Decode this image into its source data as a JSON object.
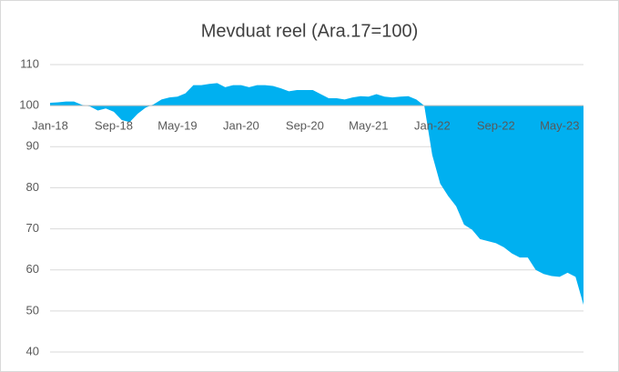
{
  "chart_data": {
    "type": "area",
    "title": "Mevduat reel (Ara.17=100)",
    "categories": [
      "Jan-18",
      null,
      null,
      null,
      null,
      null,
      null,
      null,
      "Sep-18",
      null,
      null,
      null,
      null,
      null,
      null,
      null,
      "May-19",
      null,
      null,
      null,
      null,
      null,
      null,
      null,
      "Jan-20",
      null,
      null,
      null,
      null,
      null,
      null,
      null,
      "Sep-20",
      null,
      null,
      null,
      null,
      null,
      null,
      null,
      "May-21",
      null,
      null,
      null,
      null,
      null,
      null,
      null,
      "Jan-22",
      null,
      null,
      null,
      null,
      null,
      null,
      null,
      "Sep-22",
      null,
      null,
      null,
      null,
      null,
      null,
      null,
      "May-23",
      null,
      null,
      null
    ],
    "values": [
      100.7,
      100.8,
      101,
      101,
      100.2,
      99.8,
      98.8,
      99.3,
      98.5,
      96.5,
      96,
      98,
      99.5,
      100.3,
      101.5,
      102,
      102.2,
      103,
      105,
      105,
      105.3,
      105.5,
      104.5,
      105,
      105,
      104.5,
      105,
      105,
      104.8,
      104.2,
      103.5,
      103.8,
      103.8,
      103.8,
      102.8,
      101.8,
      101.8,
      101.5,
      102,
      102.3,
      102.2,
      102.8,
      102.2,
      102,
      102.2,
      102.3,
      101.5,
      100,
      88,
      81,
      78,
      75.5,
      71,
      69.8,
      67.5,
      67,
      66.5,
      65.5,
      64,
      63,
      63,
      60,
      59,
      58.5,
      58.3,
      59.3,
      58.3,
      51.5
    ],
    "color": "#00b0f0",
    "ylim": [
      40,
      110
    ],
    "yticks": [
      40,
      50,
      60,
      70,
      80,
      90,
      100,
      110
    ],
    "grid": true,
    "x_axis_crosses": 100
  }
}
